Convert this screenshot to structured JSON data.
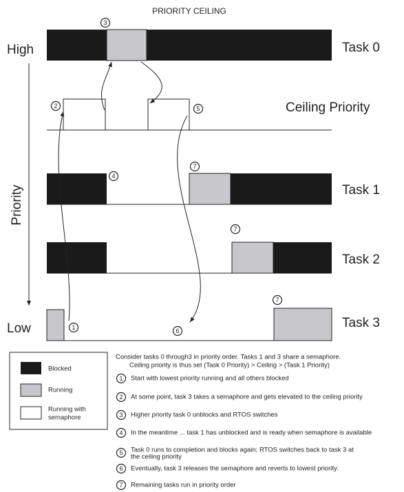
{
  "title": "PRIORITY CEILING",
  "axis": {
    "high": "High",
    "low": "Low",
    "label": "Priority"
  },
  "rows": [
    "Task 0",
    "Ceiling Priority",
    "Task 1",
    "Task 2",
    "Task 3"
  ],
  "markers": [
    "1",
    "2",
    "3",
    "4",
    "5",
    "6",
    "7"
  ],
  "legend": {
    "blocked": "Blocked",
    "running": "Running",
    "running_sem": [
      "Running with",
      "semaphore"
    ]
  },
  "intro": [
    "Consider  tasks 0 through3 in priority order. Tasks 1 and 3 share a semaphore.",
    "Ceiling priority is thus set (Task 0 Priority) > Ceiling > (Task 1 Priority)"
  ],
  "notes": [
    {
      "num": "1",
      "lines": [
        "Start with lowest priority running and all others blocked"
      ]
    },
    {
      "num": "2",
      "lines": [
        "At some point, task 3 takes a semaphore and gets elevated to the ceiling priority"
      ]
    },
    {
      "num": "3",
      "lines": [
        "Higher priority task 0 unblocks and RTOS switches"
      ]
    },
    {
      "num": "4",
      "lines": [
        "In the meantime ... task 1 has unblocked and is ready when semaphore is available"
      ]
    },
    {
      "num": "5",
      "lines": [
        "Task 0 runs to completion and blocks again; RTOS switches back to task 3 at",
        "the ceiling priority"
      ]
    },
    {
      "num": "6",
      "lines": [
        "Eventually, task 3 releases the semaphore and reverts to lowest priority."
      ]
    },
    {
      "num": "7",
      "lines": [
        "Remaining tasks run in priority order"
      ]
    }
  ]
}
